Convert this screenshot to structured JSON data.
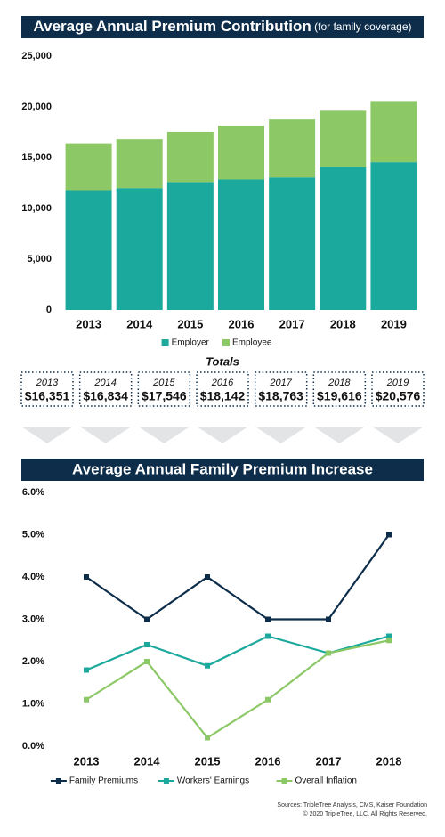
{
  "chart_data": [
    {
      "type": "bar",
      "stacked": true,
      "title": "Average Annual Premium Contribution",
      "subtitle": "(for family coverage)",
      "categories": [
        "2013",
        "2014",
        "2015",
        "2016",
        "2017",
        "2018",
        "2019"
      ],
      "series": [
        {
          "name": "Employer",
          "color": "#1aa99c",
          "values": [
            11800,
            12000,
            12600,
            12850,
            13050,
            14050,
            14550
          ]
        },
        {
          "name": "Employee",
          "color": "#8cc866",
          "values": [
            4550,
            4830,
            4950,
            5290,
            5710,
            5570,
            6030
          ]
        }
      ],
      "ylim": [
        0,
        25000
      ],
      "yticks": [
        0,
        {
          "value": 5000,
          "label": "5,000"
        },
        {
          "value": 10000,
          "label": "10,000"
        },
        {
          "value": 15000,
          "label": "15,000"
        },
        {
          "value": 20000,
          "label": "20,000"
        },
        {
          "value": 25000,
          "label": "25,000"
        }
      ],
      "grid": false
    },
    {
      "type": "line",
      "title": "Average Annual Family Premium Increase",
      "categories": [
        "2013",
        "2014",
        "2015",
        "2016",
        "2017",
        "2018"
      ],
      "series": [
        {
          "name": "Family Premiums",
          "color": "#0d2d4a",
          "values": [
            4.0,
            3.0,
            4.0,
            3.0,
            3.0,
            5.0
          ]
        },
        {
          "name": "Workers' Earnings",
          "color": "#1aa99c",
          "values": [
            1.8,
            2.4,
            1.9,
            2.6,
            2.2,
            2.6
          ]
        },
        {
          "name": "Overall Inflation",
          "color": "#8cc866",
          "values": [
            1.1,
            2.0,
            0.2,
            1.1,
            2.2,
            2.5
          ]
        }
      ],
      "ylim": [
        0,
        6
      ],
      "yticks": [
        {
          "value": 0,
          "label": "0.0%"
        },
        {
          "value": 1,
          "label": "1.0%"
        },
        {
          "value": 2,
          "label": "2.0%"
        },
        {
          "value": 3,
          "label": "3.0%"
        },
        {
          "value": 4,
          "label": "4.0%"
        },
        {
          "value": 5,
          "label": "5.0%"
        },
        {
          "value": 6,
          "label": "6.0%"
        }
      ],
      "grid": false
    }
  ],
  "totals": {
    "title": "Totals",
    "years": [
      "2013",
      "2014",
      "2015",
      "2016",
      "2017",
      "2018",
      "2019"
    ],
    "amounts": [
      "$16,351",
      "$16,834",
      "$17,546",
      "$18,142",
      "$18,763",
      "$19,616",
      "$20,576"
    ]
  },
  "footer": {
    "sources": "Sources: TripleTree Analysis, CMS, Kaiser Foundation",
    "copyright": "© 2020 TripleTree, LLC. All Rights Reserved."
  }
}
